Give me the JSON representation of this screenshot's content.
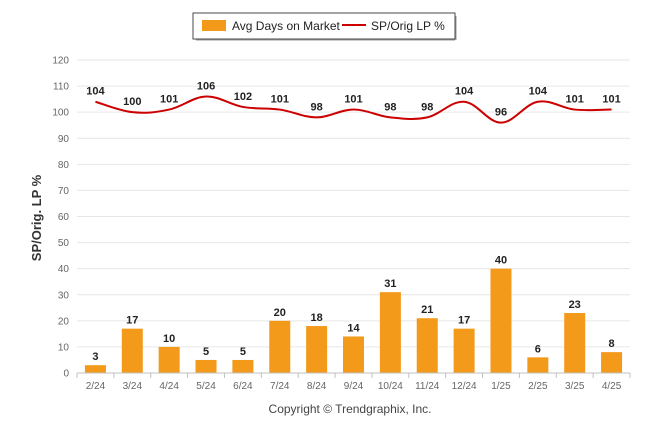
{
  "chart_data": {
    "type": "bar",
    "categories": [
      "2/24",
      "3/24",
      "4/24",
      "5/24",
      "6/24",
      "7/24",
      "8/24",
      "9/24",
      "10/24",
      "11/24",
      "12/24",
      "1/25",
      "2/25",
      "3/25",
      "4/25"
    ],
    "series": [
      {
        "name": "Avg Days on Market",
        "type": "bar",
        "color": "#F39A1B",
        "values": [
          3,
          17,
          10,
          5,
          5,
          20,
          18,
          14,
          31,
          21,
          17,
          40,
          6,
          23,
          8
        ]
      },
      {
        "name": "SP/Orig LP %",
        "type": "line",
        "color": "#CC0000",
        "values": [
          104,
          100,
          101,
          106,
          102,
          101,
          98,
          101,
          98,
          98,
          104,
          96,
          104,
          101,
          101
        ]
      }
    ],
    "ylabel": "SP/Orig. LP %",
    "ylim": [
      0,
      120
    ],
    "yticks": [
      0,
      10,
      20,
      30,
      40,
      50,
      60,
      70,
      80,
      90,
      100,
      110,
      120
    ],
    "grid": true,
    "legend_placement": "top-center",
    "footer": "Copyright © Trendgraphix, Inc."
  }
}
